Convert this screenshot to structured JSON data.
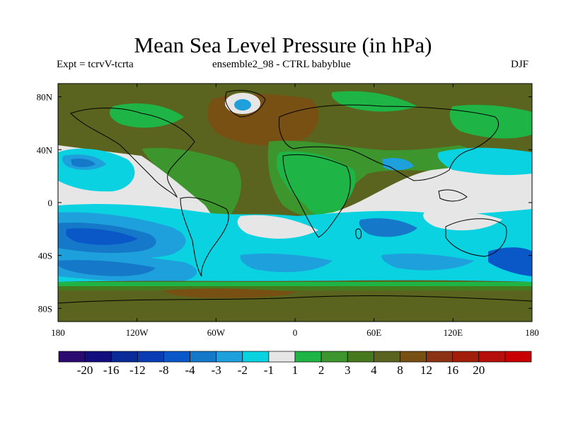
{
  "title": "Mean Sea Level Pressure (in hPa)",
  "subtitle_left": "Expt = tcrvV-tcrta",
  "subtitle_center": "ensemble2_98 - CTRL babyblue",
  "subtitle_right": "DJF",
  "map": {
    "projection": "cylindrical equidistant",
    "lon_range": [
      -180,
      180
    ],
    "lat_range": [
      -90,
      90
    ],
    "x_ticks": [
      {
        "lon": -180,
        "label": "180"
      },
      {
        "lon": -120,
        "label": "120W"
      },
      {
        "lon": -60,
        "label": "60W"
      },
      {
        "lon": 0,
        "label": "0"
      },
      {
        "lon": 60,
        "label": "60E"
      },
      {
        "lon": 120,
        "label": "120E"
      },
      {
        "lon": 180,
        "label": "180"
      }
    ],
    "y_ticks": [
      {
        "lat": 80,
        "label": "80N"
      },
      {
        "lat": 40,
        "label": "40N"
      },
      {
        "lat": 0,
        "label": "0"
      },
      {
        "lat": -40,
        "label": "40S"
      },
      {
        "lat": -80,
        "label": "80S"
      }
    ]
  },
  "colorbar": {
    "colors": [
      "#2a0a6e",
      "#120e80",
      "#0a2a98",
      "#0a3cb4",
      "#0a58c8",
      "#1578c8",
      "#1ea0dc",
      "#0ad2e0",
      "#e6e6e6",
      "#1eb446",
      "#3c962d",
      "#46781e",
      "#5a641e",
      "#785014",
      "#8c3214",
      "#a01e0a",
      "#b40f0a",
      "#c80000"
    ],
    "labels": [
      "-20",
      "-16",
      "-12",
      "-8",
      "-4",
      "-3",
      "-2",
      "-1",
      "1",
      "2",
      "3",
      "4",
      "8",
      "12",
      "16",
      "20"
    ]
  }
}
